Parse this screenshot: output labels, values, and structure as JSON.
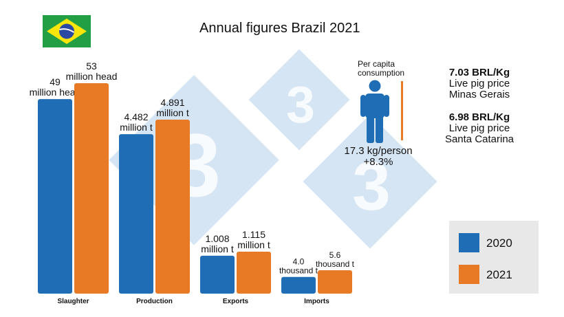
{
  "title": "Annual figures Brazil 2021",
  "colors": {
    "y2020": "#1f6db5",
    "y2021": "#e87a25",
    "watermark": "#9ec3e6"
  },
  "icons": {
    "flag": "brazil-flag-icon",
    "person": "person-icon",
    "watermark": "logo-3-watermark"
  },
  "per_capita": {
    "label_line1": "Per capita",
    "label_line2": "consumption",
    "value": "17.3 kg/person",
    "change": "+8.3%"
  },
  "prices": [
    {
      "value": "7.03  BRL/Kg",
      "line1": "Live pig price",
      "line2": "Minas Gerais"
    },
    {
      "value": "6.98 BRL/Kg",
      "line1": "Live pig price",
      "line2": "Santa Catarina"
    }
  ],
  "legend": {
    "items": [
      "2020",
      "2021"
    ]
  },
  "chart_data": {
    "type": "bar",
    "categories": [
      "Slaughter",
      "Production",
      "Exports",
      "Imports"
    ],
    "series": [
      {
        "name": "2020",
        "values": [
          49,
          4.482,
          1.008,
          4.0
        ]
      },
      {
        "name": "2021",
        "values": [
          53,
          4.891,
          1.115,
          5.6
        ]
      }
    ],
    "units": [
      "million head",
      "million t",
      "million t",
      "thousand t"
    ],
    "data_labels": [
      [
        [
          "49",
          "million head"
        ],
        [
          "53",
          "million head"
        ]
      ],
      [
        [
          "4.482",
          "million t"
        ],
        [
          "4.891",
          "million t"
        ]
      ],
      [
        [
          "1.008",
          "million t"
        ],
        [
          "1.115",
          "million t"
        ]
      ],
      [
        [
          "4.0",
          "thousand t"
        ],
        [
          "5.6",
          "thousand t"
        ]
      ]
    ],
    "legend_position": "bottom-right",
    "grid": false
  }
}
